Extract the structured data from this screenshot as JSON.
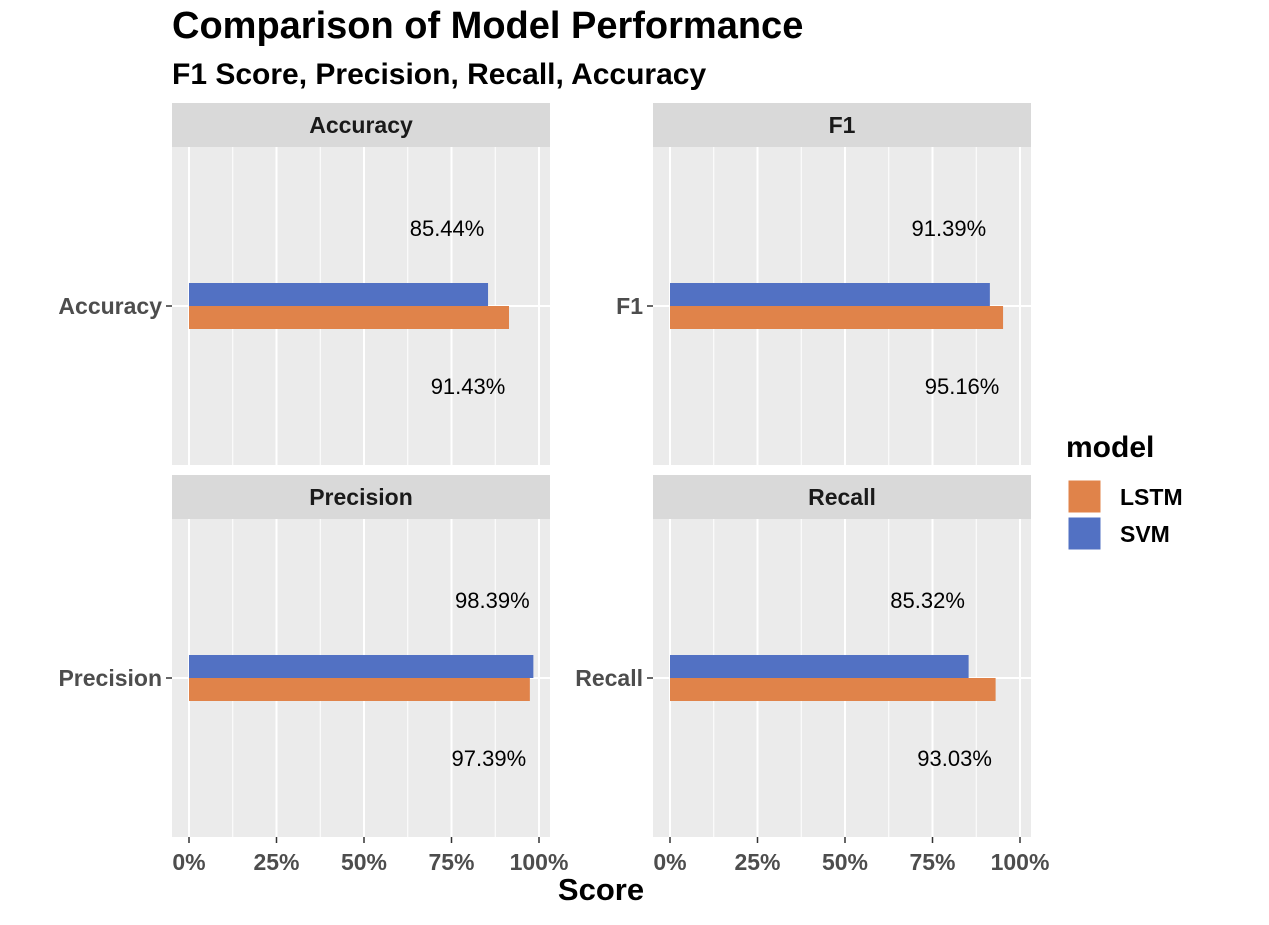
{
  "chart_data": {
    "type": "bar",
    "orientation": "horizontal",
    "title": "Comparison of Model Performance",
    "subtitle": "F1 Score, Precision, Recall, Accuracy",
    "xlabel": "Score",
    "ylabel": "",
    "xlim": [
      0,
      100
    ],
    "x_ticks": [
      "0%",
      "25%",
      "50%",
      "75%",
      "100%"
    ],
    "x_tick_values": [
      0,
      25,
      50,
      75,
      100
    ],
    "grid": true,
    "legend_title": "model",
    "legend_position": "right",
    "series": [
      {
        "name": "LSTM",
        "color": "#E0834A"
      },
      {
        "name": "SVM",
        "color": "#5271C3"
      }
    ],
    "facets": [
      {
        "name": "Accuracy",
        "category": "Accuracy",
        "values": {
          "SVM": 85.44,
          "LSTM": 91.43
        },
        "labels": {
          "SVM": "85.44%",
          "LSTM": "91.43%"
        }
      },
      {
        "name": "F1",
        "category": "F1",
        "values": {
          "SVM": 91.39,
          "LSTM": 95.16
        },
        "labels": {
          "SVM": "91.39%",
          "LSTM": "95.16%"
        }
      },
      {
        "name": "Precision",
        "category": "Precision",
        "values": {
          "SVM": 98.39,
          "LSTM": 97.39
        },
        "labels": {
          "SVM": "98.39%",
          "LSTM": "97.39%"
        }
      },
      {
        "name": "Recall",
        "category": "Recall",
        "values": {
          "SVM": 85.32,
          "LSTM": 93.03
        },
        "labels": {
          "SVM": "85.32%",
          "LSTM": "93.03%"
        }
      }
    ]
  },
  "colors": {
    "panel_background": "#EBEBEB",
    "strip_background": "#D9D9D9",
    "gridline": "#FFFFFF"
  }
}
